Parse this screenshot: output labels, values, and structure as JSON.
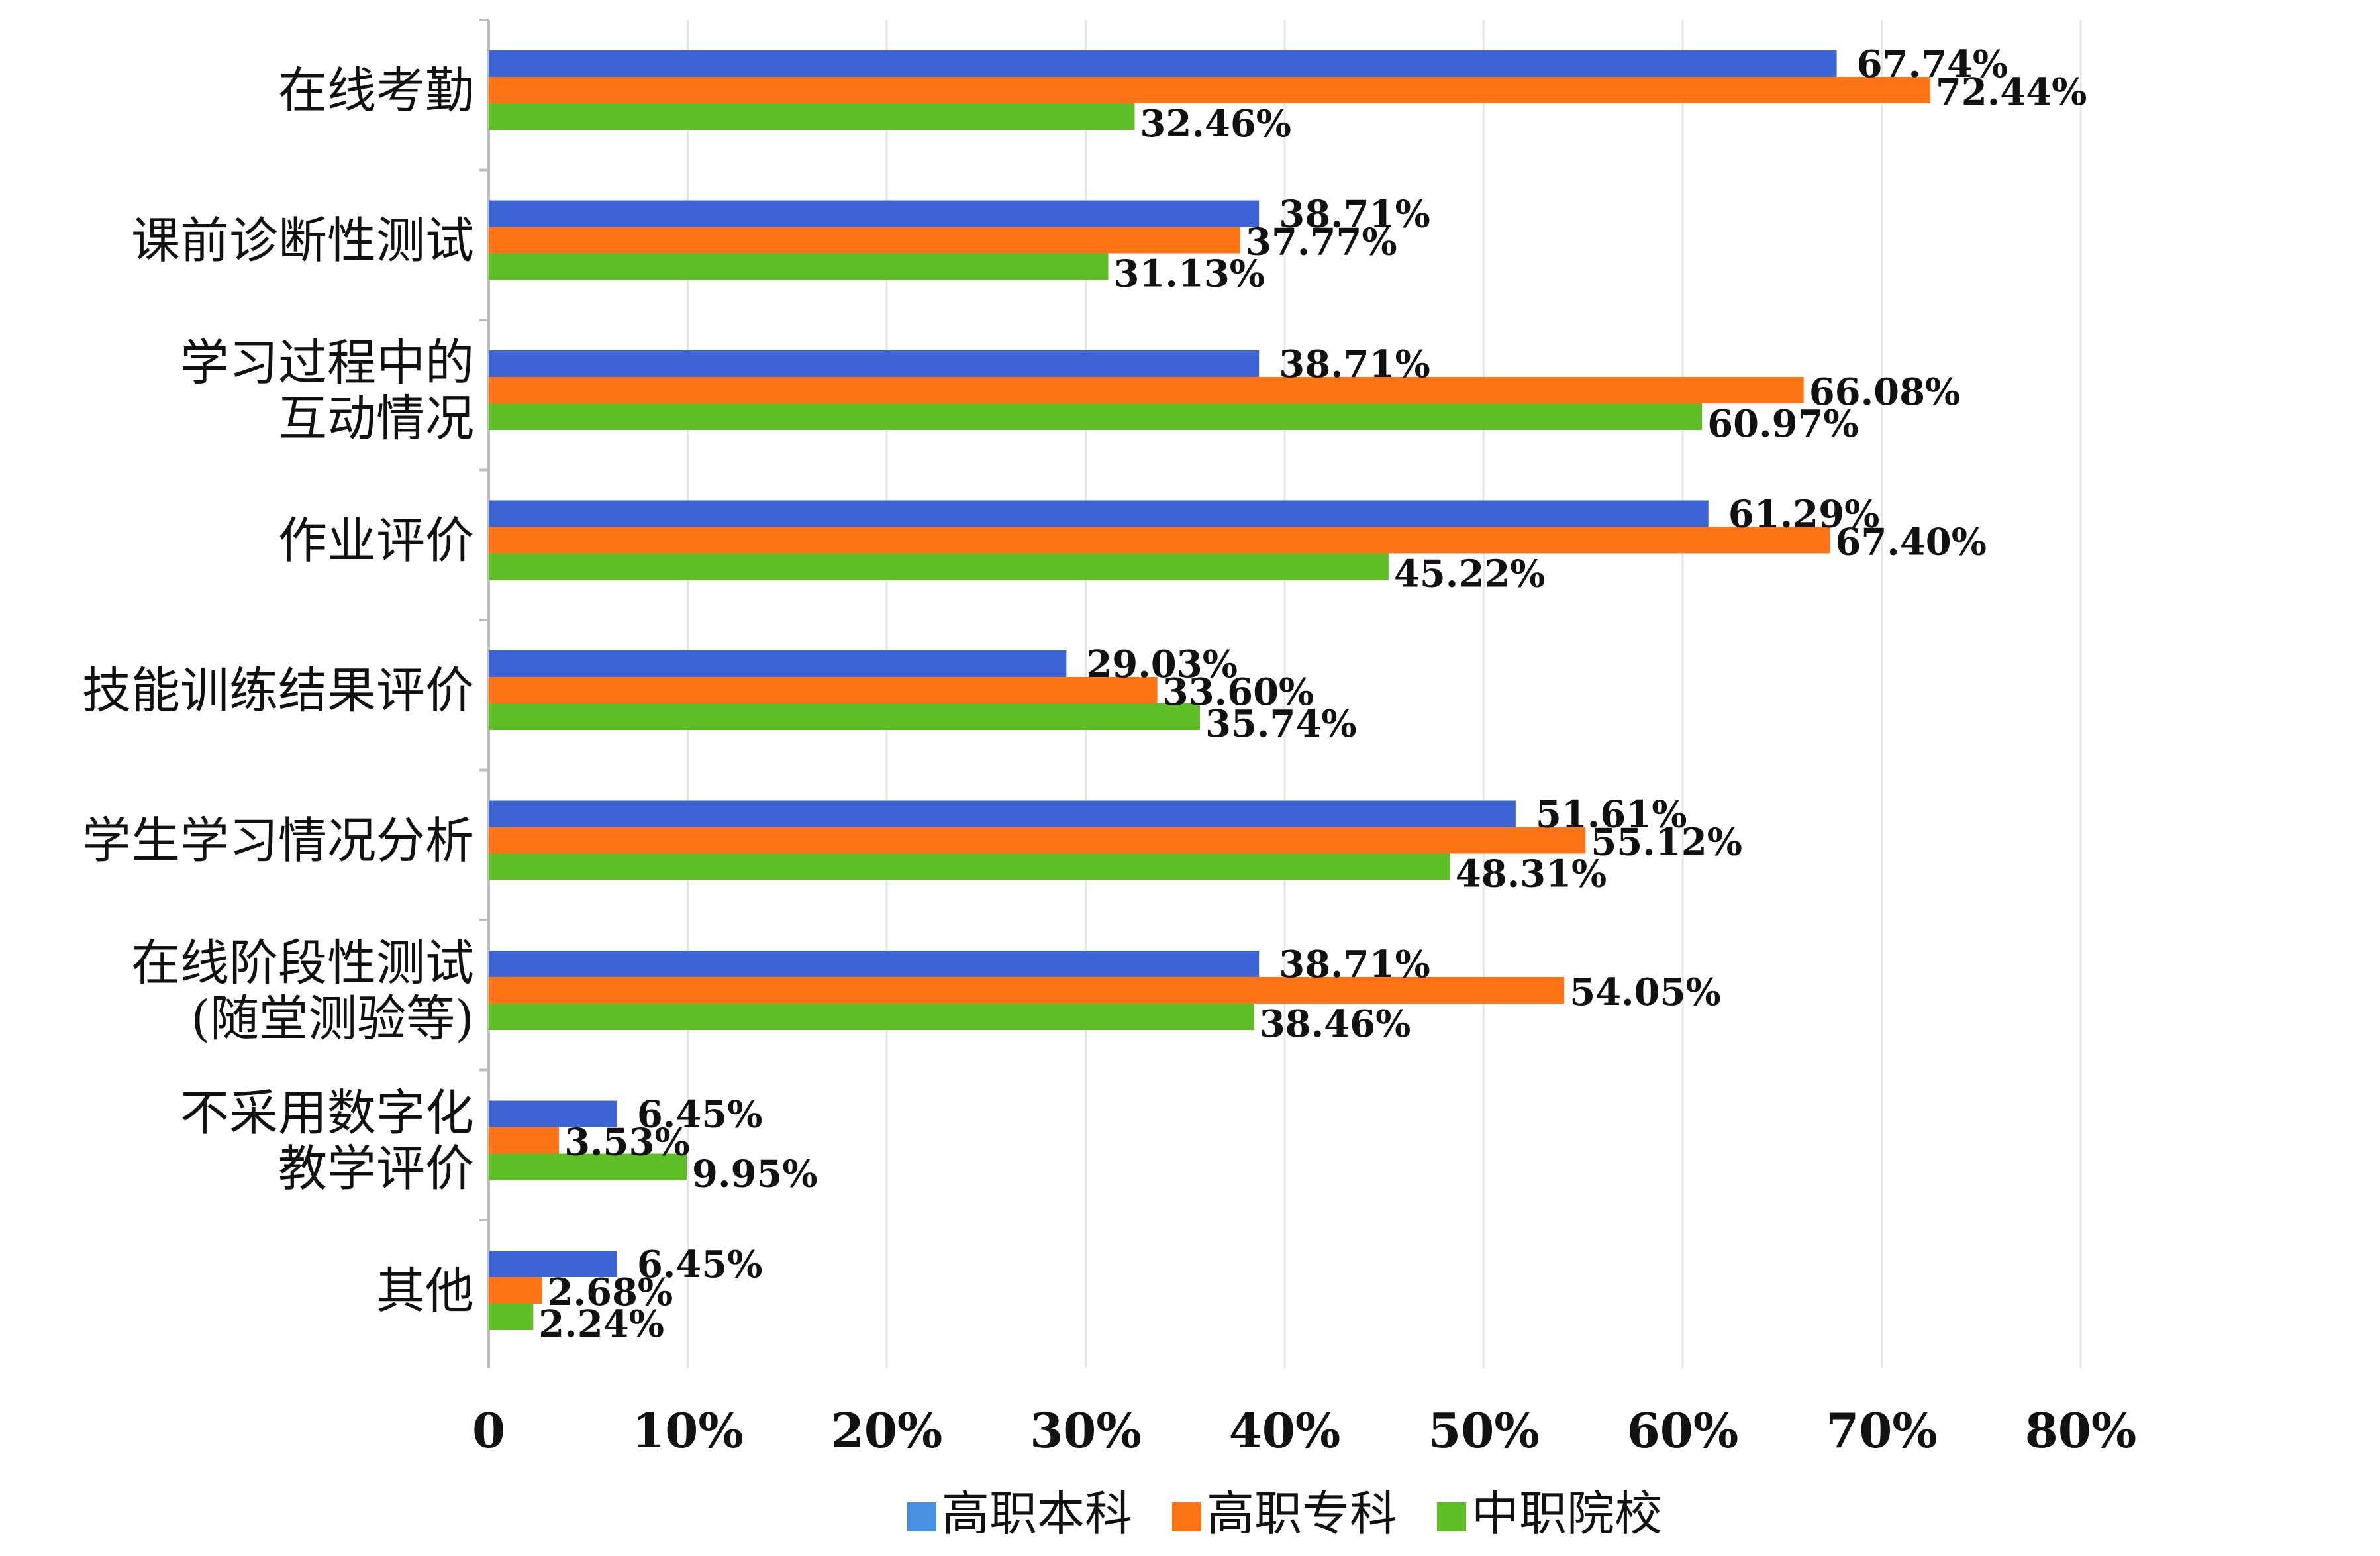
{
  "chart_data": {
    "type": "bar",
    "orientation": "horizontal",
    "categories": [
      [
        "在线考勤"
      ],
      [
        "课前诊断性测试"
      ],
      [
        "学习过程中的",
        "互动情况"
      ],
      [
        "作业评价"
      ],
      [
        "技能训练结果评价"
      ],
      [
        "学生学习情况分析"
      ],
      [
        "在线阶段性测试",
        "(随堂测验等)"
      ],
      [
        "不采用数字化",
        "教学评价"
      ],
      [
        "其他"
      ]
    ],
    "series": [
      {
        "name": "高职本科",
        "color": "#3c64d4",
        "legend_color": "#4a90e2",
        "values": [
          67.74,
          38.71,
          38.71,
          61.29,
          29.03,
          51.61,
          38.71,
          6.45,
          6.45
        ],
        "labels": [
          "67.74%",
          "38.71%",
          "38.71%",
          "61.29%",
          "29.03%",
          "51.61%",
          "38.71%",
          "6.45%",
          "6.45%"
        ]
      },
      {
        "name": "高职专科",
        "color": "#ff7417",
        "legend_color": "#ff7417",
        "values": [
          72.44,
          37.77,
          66.08,
          67.4,
          33.6,
          55.12,
          54.05,
          3.53,
          2.68
        ],
        "labels": [
          "72.44%",
          "37.77%",
          "66.08%",
          "67.40%",
          "33.60%",
          "55.12%",
          "54.05%",
          "3.53%",
          "2.68%"
        ]
      },
      {
        "name": "中职院校",
        "color": "#5fbd25",
        "legend_color": "#5fbd25",
        "values": [
          32.46,
          31.13,
          60.97,
          45.22,
          35.74,
          48.31,
          38.46,
          9.95,
          2.24
        ],
        "labels": [
          "32.46%",
          "31.13%",
          "60.97%",
          "45.22%",
          "35.74%",
          "48.31%",
          "38.46%",
          "9.95%",
          "2.24%"
        ]
      }
    ],
    "xlim": [
      0,
      80
    ],
    "x_ticks": [
      0,
      10,
      20,
      30,
      40,
      50,
      60,
      70,
      80
    ],
    "x_tick_labels": [
      "0",
      "10%",
      "20%",
      "30%",
      "40%",
      "50%",
      "60%",
      "70%",
      "80%"
    ],
    "grid": "vertical",
    "legend_position": "bottom"
  }
}
